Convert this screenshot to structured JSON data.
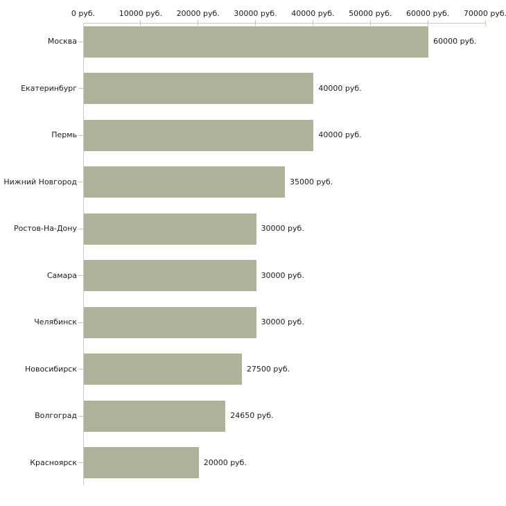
{
  "chart_data": {
    "type": "bar",
    "orientation": "horizontal",
    "title": "",
    "xlabel": "",
    "ylabel": "",
    "grid": false,
    "legend": false,
    "xlim": [
      0,
      70000
    ],
    "x_ticks": [
      0,
      10000,
      20000,
      30000,
      40000,
      50000,
      60000,
      70000
    ],
    "x_tick_labels": [
      "0 руб.",
      "10000 руб.",
      "20000 руб.",
      "30000 руб.",
      "40000 руб.",
      "50000 руб.",
      "60000 руб.",
      "70000 руб."
    ],
    "categories": [
      "Москва",
      "Екатеринбург",
      "Пермь",
      "Нижний Новгород",
      "Ростов-На-Дону",
      "Самара",
      "Челябинск",
      "Новосибирск",
      "Волгоград",
      "Красноярск"
    ],
    "values": [
      60000,
      40000,
      40000,
      35000,
      30000,
      30000,
      30000,
      27500,
      24650,
      20000
    ],
    "value_labels": [
      "60000 руб.",
      "40000 руб.",
      "40000 руб.",
      "35000 руб.",
      "30000 руб.",
      "30000 руб.",
      "30000 руб.",
      "27500 руб.",
      "24650 руб.",
      "20000 руб."
    ],
    "colors": {
      "bar": "#adb398",
      "axis": "#c8c8c8",
      "tick": "#c3c3a1",
      "text": "#1a1a1a",
      "background": "#ffffff"
    }
  }
}
